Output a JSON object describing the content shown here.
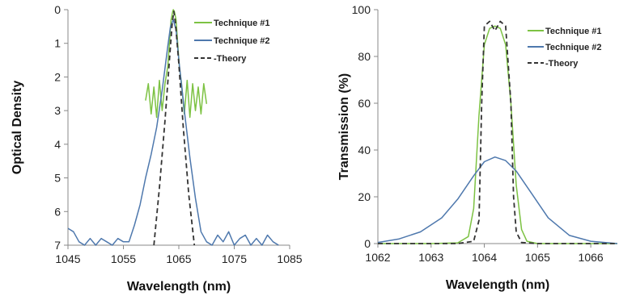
{
  "chart_data": [
    {
      "type": "line",
      "xlabel": "Wavelength (nm)",
      "ylabel": "Optical Density",
      "xlim": [
        1045,
        1085
      ],
      "ylim": [
        0,
        7
      ],
      "y_reversed": true,
      "x_ticks": [
        1045,
        1055,
        1065,
        1075,
        1085
      ],
      "y_ticks": [
        0,
        1,
        2,
        3,
        4,
        5,
        6,
        7
      ],
      "legend_position": "top-right",
      "series": [
        {
          "name": "Technique #1",
          "color": "#7dc243",
          "style": "solid",
          "x": [
            1059.0,
            1059.5,
            1060.0,
            1060.5,
            1061.0,
            1061.5,
            1062.0,
            1062.5,
            1063.0,
            1063.3,
            1063.6,
            1063.9,
            1064.0,
            1064.2,
            1064.5,
            1064.8,
            1065.1,
            1065.5,
            1066.0,
            1066.5,
            1067.0,
            1067.5,
            1068.0,
            1068.5,
            1069.0,
            1069.5,
            1070.0
          ],
          "y": [
            2.7,
            2.2,
            3.1,
            2.3,
            3.2,
            2.1,
            3.0,
            2.2,
            1.7,
            1.0,
            0.3,
            0.05,
            0.0,
            0.05,
            0.3,
            1.0,
            1.7,
            2.2,
            3.1,
            2.1,
            3.2,
            2.2,
            3.0,
            2.3,
            3.1,
            2.2,
            2.8
          ]
        },
        {
          "name": "Technique #2",
          "color": "#4e78ad",
          "style": "solid",
          "x": [
            1045.0,
            1046.0,
            1047.0,
            1048.0,
            1049.0,
            1050.0,
            1051.0,
            1052.0,
            1053.0,
            1054.0,
            1055.0,
            1056.0,
            1057.0,
            1058.0,
            1059.0,
            1060.0,
            1061.0,
            1062.0,
            1063.0,
            1063.5,
            1064.0,
            1064.5,
            1065.0,
            1066.0,
            1067.0,
            1068.0,
            1069.0,
            1070.0,
            1071.0,
            1072.0,
            1073.0,
            1074.0,
            1075.0,
            1076.0,
            1077.0,
            1078.0,
            1079.0,
            1080.0,
            1081.0,
            1082.0,
            1083.0
          ],
          "y": [
            6.5,
            6.6,
            6.9,
            7.0,
            6.8,
            7.0,
            6.8,
            6.9,
            7.0,
            6.8,
            6.9,
            6.9,
            6.4,
            5.8,
            5.0,
            4.3,
            3.5,
            2.4,
            1.1,
            0.5,
            0.3,
            0.6,
            1.5,
            3.0,
            4.4,
            5.6,
            6.6,
            6.9,
            7.0,
            6.7,
            6.9,
            6.6,
            7.0,
            6.8,
            6.7,
            7.0,
            6.8,
            7.0,
            6.7,
            6.9,
            7.0
          ]
        },
        {
          "name": "Theory",
          "color": "#333333",
          "style": "dashed",
          "x": [
            1060.5,
            1061.5,
            1062.5,
            1063.3,
            1063.8,
            1064.1,
            1064.4,
            1065.0,
            1065.8,
            1066.8,
            1067.8
          ],
          "y": [
            7.0,
            5.3,
            3.3,
            1.5,
            0.4,
            0.05,
            0.4,
            1.6,
            3.5,
            5.5,
            7.0
          ]
        }
      ]
    },
    {
      "type": "line",
      "xlabel": "Wavelength (nm)",
      "ylabel": "Transmission (%)",
      "xlim": [
        1062,
        1066.5
      ],
      "ylim": [
        0,
        100
      ],
      "x_ticks": [
        1062,
        1063,
        1064,
        1065,
        1066
      ],
      "y_ticks": [
        0,
        20,
        40,
        60,
        80,
        100
      ],
      "legend_position": "top-right",
      "series": [
        {
          "name": "Technique #1",
          "color": "#7dc243",
          "style": "solid",
          "x": [
            1062.0,
            1063.0,
            1063.5,
            1063.7,
            1063.8,
            1063.9,
            1064.0,
            1064.1,
            1064.2,
            1064.3,
            1064.4,
            1064.5,
            1064.6,
            1064.7,
            1064.8,
            1065.0,
            1066.5
          ],
          "y": [
            0,
            0,
            0.3,
            3,
            15,
            55,
            85,
            92,
            93,
            92,
            85,
            60,
            25,
            6,
            1,
            0,
            0
          ]
        },
        {
          "name": "Technique #2",
          "color": "#4e78ad",
          "style": "solid",
          "x": [
            1062.0,
            1062.4,
            1062.8,
            1063.2,
            1063.5,
            1063.8,
            1064.0,
            1064.2,
            1064.4,
            1064.6,
            1064.9,
            1065.2,
            1065.6,
            1066.0,
            1066.5
          ],
          "y": [
            0.5,
            2,
            5,
            11,
            19,
            29,
            35,
            37,
            35.5,
            31,
            21,
            11,
            3.5,
            1,
            0
          ]
        },
        {
          "name": "Theory",
          "color": "#333333",
          "style": "dashed",
          "x": [
            1062.0,
            1063.5,
            1063.8,
            1063.9,
            1063.95,
            1064.0,
            1064.1,
            1064.2,
            1064.3,
            1064.4,
            1064.5,
            1064.55,
            1064.6,
            1064.7,
            1065.0,
            1066.5
          ],
          "y": [
            0,
            0,
            1,
            10,
            60,
            93,
            95,
            91,
            95,
            93,
            60,
            20,
            5,
            0.5,
            0,
            0
          ]
        }
      ]
    }
  ]
}
